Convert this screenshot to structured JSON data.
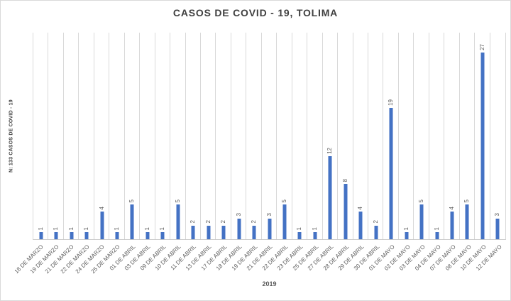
{
  "chart_data": {
    "type": "bar",
    "title": "CASOS DE COVID - 19, TOLIMA",
    "xlabel": "2019",
    "ylabel": "N: 133 CASOS DE COVID - 19",
    "categories": [
      "18 DE MARZO",
      "19 DE MARZO",
      "21 DE MARZO",
      "22 DE MARZO",
      "24 DE MARZO",
      "25 DE MARZO",
      "01 DE ABRIL",
      "03 DE ABRIL",
      "09 DE ABRIL",
      "10 DE ABRIL",
      "11 DE ABRIL",
      "13 DE ABRIL",
      "17 DE ABRIL",
      "18 DE ABRIL",
      "19 DE ABRIL",
      "21 DE ABRIL",
      "22 DE ABRIL",
      "23 DE ABRIL",
      "25 DE ABRIL",
      "27 DE ABRIL",
      "28 DE ABRIL",
      "29 DE ABRIL",
      "30 DE ABRIL",
      "01 DE MAYO",
      "02 DE MAYO",
      "03 DE MAYO",
      "04 DE MAYO",
      "07 DE MAYO",
      "08 DE MAYO",
      "10 DE MAYO",
      "12 DE MAYO"
    ],
    "values": [
      1,
      1,
      1,
      1,
      4,
      1,
      5,
      1,
      1,
      5,
      2,
      2,
      2,
      3,
      2,
      3,
      5,
      1,
      1,
      12,
      8,
      4,
      2,
      19,
      1,
      5,
      1,
      4,
      5,
      27,
      3
    ],
    "ylim": [
      0,
      30
    ],
    "grid": "vertical-only",
    "legend": "none",
    "data_labels_rotation": "90-ccw",
    "bar_color": "#4472c4",
    "label_color": "#595959",
    "title_color": "#404040",
    "gridline_color": "#d9d9d9"
  }
}
